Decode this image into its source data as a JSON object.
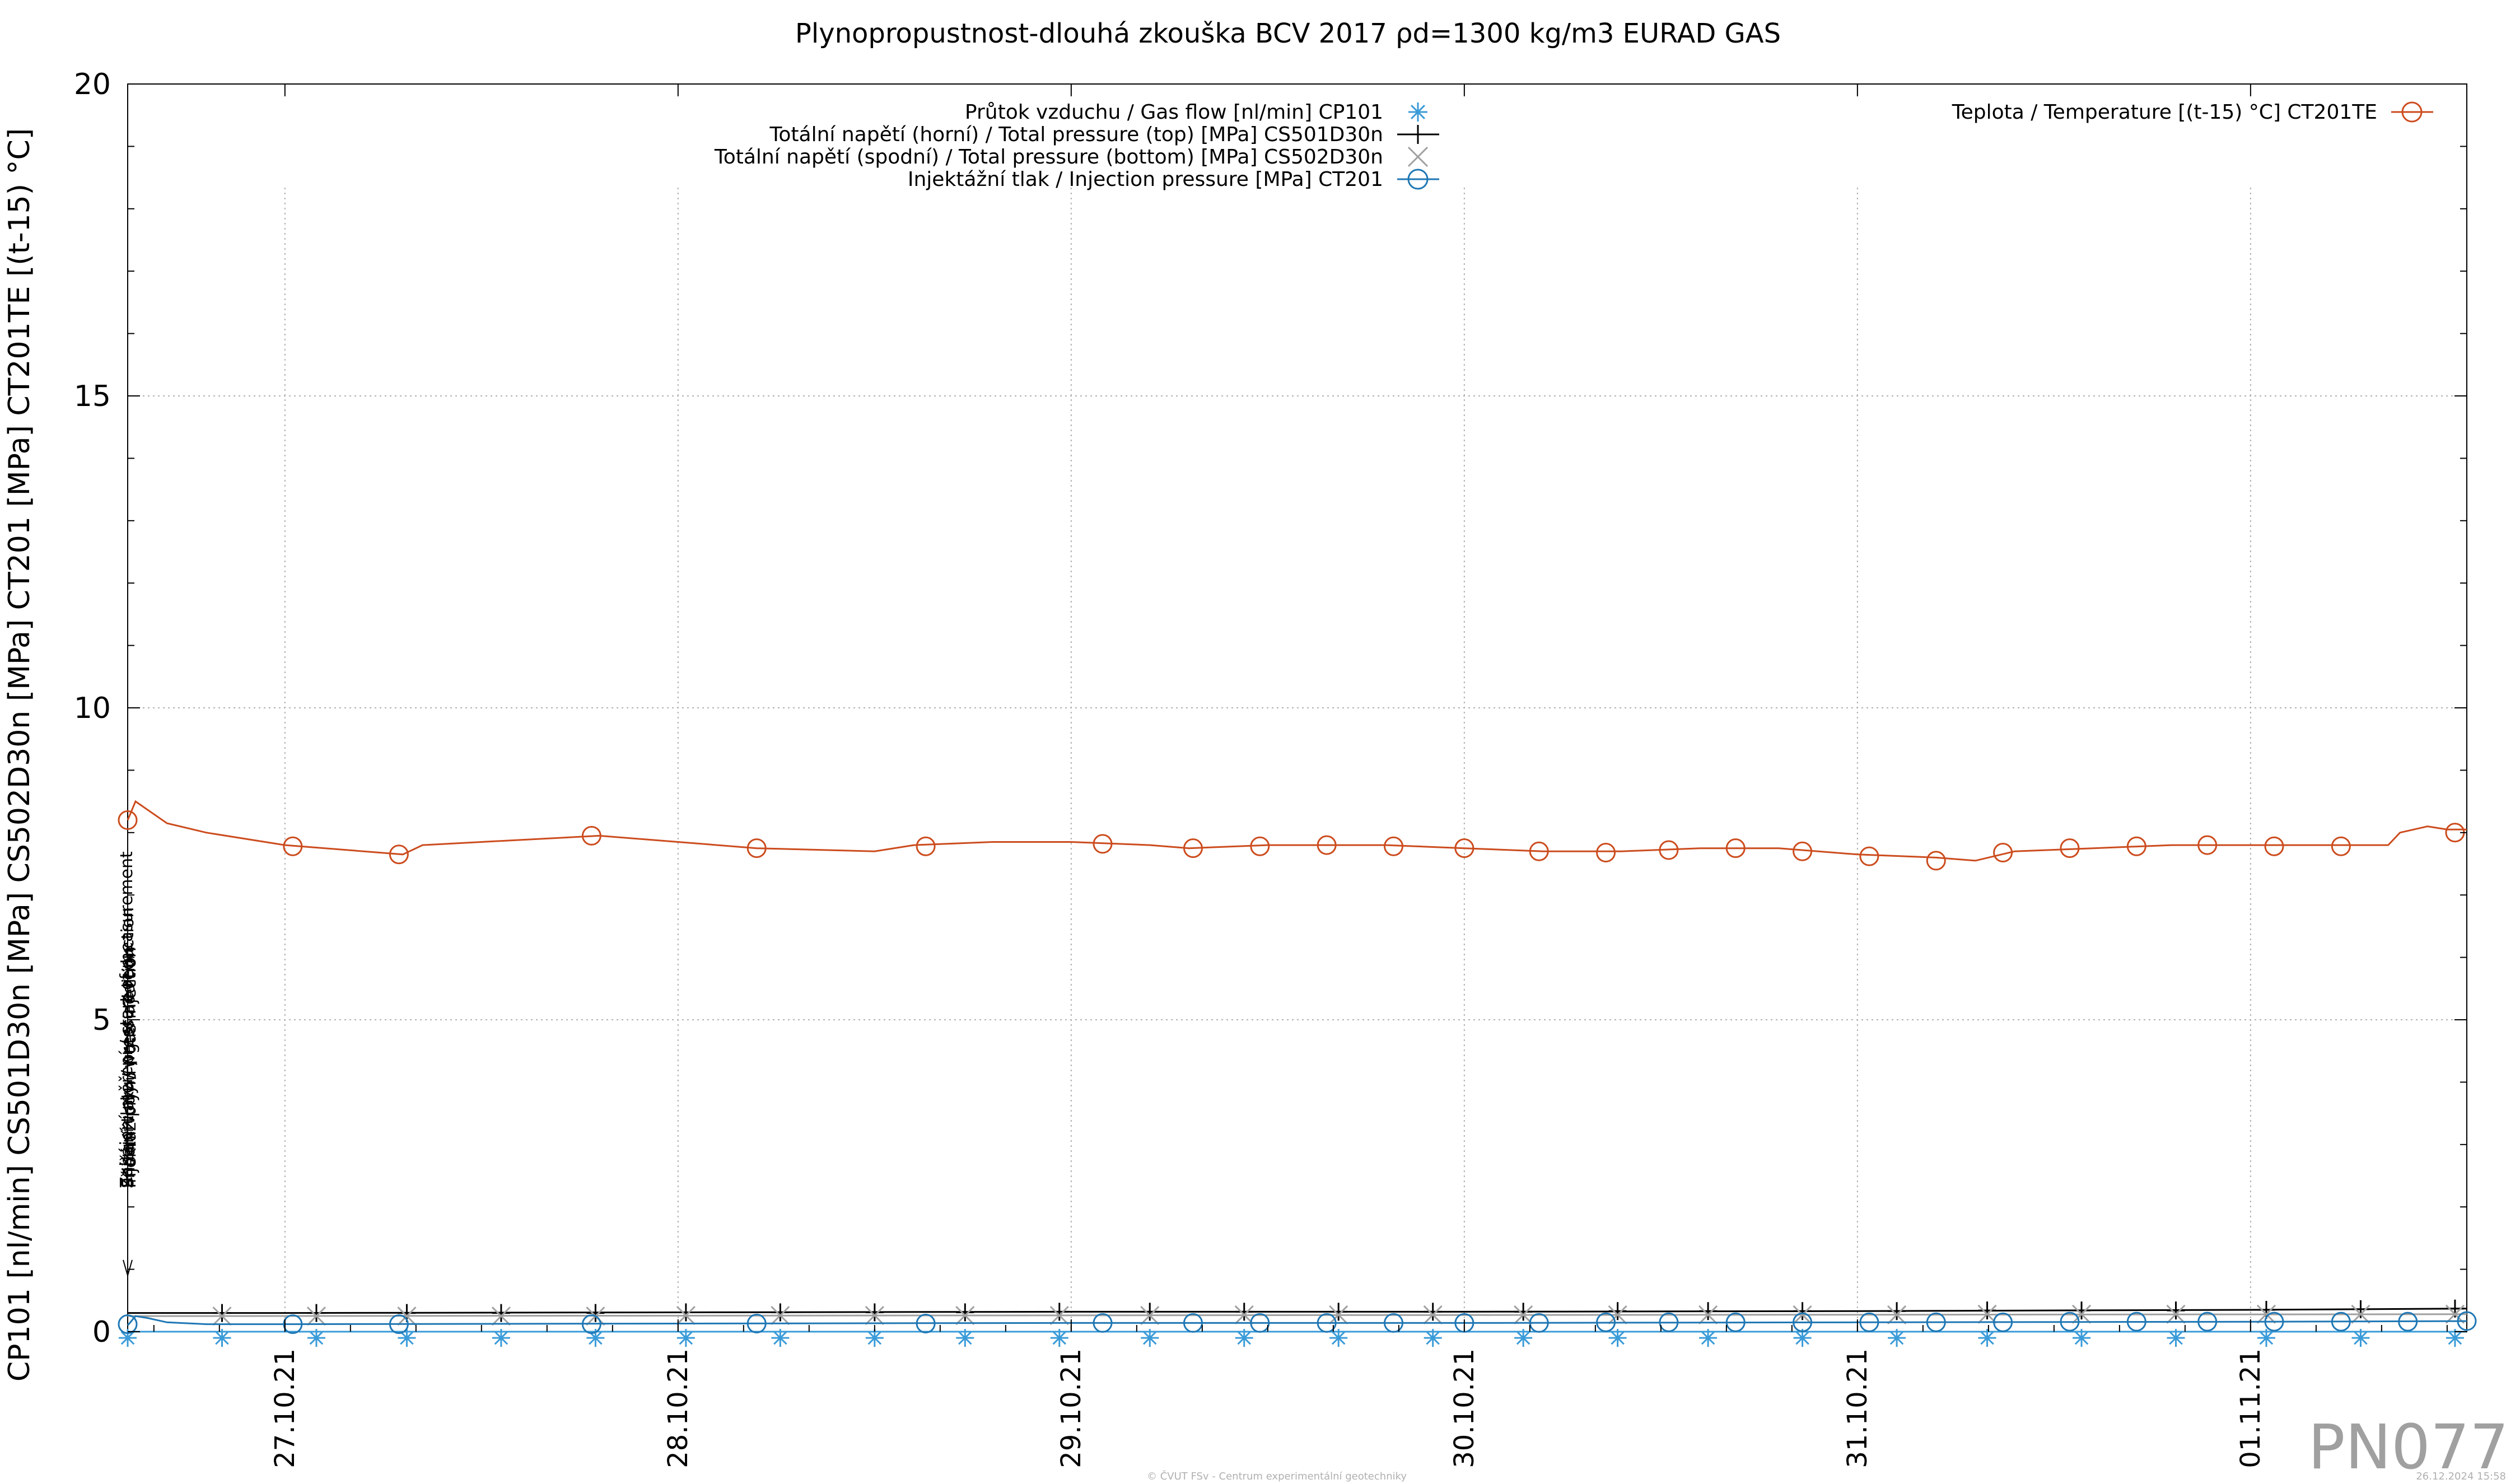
{
  "chart_data": {
    "type": "line",
    "title": "Plynopropustnost-dlouhá zkouška BCV 2017 ρd=1300 kg/m3 EURAD GAS",
    "ylabel": "CP101 [nl/min] CS501D30n [MPa] CS502D30n [MPa] CT201 [MPa] CT201TE [(t-15) °C]",
    "xlabel": "",
    "ylim": [
      0,
      20
    ],
    "yticks": [
      "0",
      "5",
      "10",
      "15",
      "20"
    ],
    "xlim": [
      26.6,
      32.55
    ],
    "x_unit": "days (27.10.21 = day 27)",
    "xticks": [
      {
        "label": "27.10.21",
        "x": 27
      },
      {
        "label": "28.10.21",
        "x": 28
      },
      {
        "label": "29.10.21",
        "x": 29
      },
      {
        "label": "30.10.21",
        "x": 30
      },
      {
        "label": "31.10.21",
        "x": 31
      },
      {
        "label": "01.11.21",
        "x": 32
      }
    ],
    "grid": true,
    "legend_left_position": "top-center",
    "legend_right_position": "top-right",
    "series": [
      {
        "name": "Průtok vzduchu / Gas flow [nl/min] CP101",
        "color": "#3a9bd8",
        "marker": "asterisk",
        "legend": "left",
        "x": [
          26.6,
          32.55
        ],
        "y": [
          0.0,
          0.0
        ],
        "marker_x": [
          26.6,
          26.84,
          27.08,
          27.31,
          27.55,
          27.79,
          28.02,
          28.26,
          28.5,
          28.73,
          28.97,
          29.2,
          29.44,
          29.68,
          29.92,
          30.15,
          30.39,
          30.62,
          30.86,
          31.1,
          31.33,
          31.57,
          31.81,
          32.04,
          32.28,
          32.52
        ],
        "marker_y": [
          -0.1,
          -0.1,
          -0.1,
          -0.1,
          -0.1,
          -0.1,
          -0.1,
          -0.1,
          -0.1,
          -0.1,
          -0.1,
          -0.1,
          -0.1,
          -0.1,
          -0.1,
          -0.1,
          -0.1,
          -0.1,
          -0.1,
          -0.1,
          -0.1,
          -0.1,
          -0.1,
          -0.1,
          -0.1,
          -0.1
        ]
      },
      {
        "name": "Totální napětí (horní) / Total pressure (top) [MPa] CS501D30n",
        "color": "#000000",
        "marker": "plus",
        "legend": "left",
        "x": [
          26.6,
          27.0,
          28.0,
          29.0,
          30.0,
          31.0,
          32.0,
          32.55
        ],
        "y": [
          0.3,
          0.3,
          0.31,
          0.32,
          0.32,
          0.33,
          0.35,
          0.37
        ],
        "marker_x": [
          26.84,
          27.08,
          27.31,
          27.55,
          27.79,
          28.02,
          28.26,
          28.5,
          28.73,
          28.97,
          29.2,
          29.44,
          29.68,
          29.92,
          30.15,
          30.39,
          30.62,
          30.86,
          31.1,
          31.33,
          31.57,
          31.81,
          32.04,
          32.28,
          32.52
        ],
        "marker_y": [
          0.3,
          0.3,
          0.3,
          0.3,
          0.3,
          0.31,
          0.31,
          0.31,
          0.31,
          0.32,
          0.32,
          0.32,
          0.32,
          0.32,
          0.32,
          0.33,
          0.33,
          0.33,
          0.33,
          0.34,
          0.34,
          0.34,
          0.35,
          0.36,
          0.37
        ]
      },
      {
        "name": "Totální napětí (spodní) / Total pressure (bottom) [MPa] CS502D30n",
        "color": "#a0a0a0",
        "marker": "cross",
        "legend": "left",
        "x": [
          26.6,
          32.55
        ],
        "y": [
          0.25,
          0.28
        ],
        "marker_x": [
          26.84,
          27.08,
          27.31,
          27.55,
          27.79,
          28.02,
          28.26,
          28.5,
          28.73,
          28.97,
          29.2,
          29.44,
          29.68,
          29.92,
          30.15,
          30.39,
          30.62,
          30.86,
          31.1,
          31.33,
          31.57,
          31.81,
          32.04,
          32.28,
          32.52
        ],
        "marker_y": [
          0.25,
          0.25,
          0.25,
          0.25,
          0.25,
          0.26,
          0.26,
          0.26,
          0.26,
          0.26,
          0.26,
          0.27,
          0.27,
          0.27,
          0.27,
          0.27,
          0.27,
          0.27,
          0.27,
          0.28,
          0.28,
          0.28,
          0.28,
          0.28,
          0.28
        ]
      },
      {
        "name": "Injektážní tlak / Injection pressure [MPa] CT201",
        "color": "#1f77b4",
        "marker": "circle",
        "legend": "left",
        "x": [
          26.6,
          26.62,
          26.65,
          26.7,
          26.8,
          27.0,
          28.0,
          29.0,
          30.0,
          31.0,
          32.0,
          32.55
        ],
        "y": [
          0.1,
          0.25,
          0.22,
          0.15,
          0.12,
          0.12,
          0.13,
          0.14,
          0.14,
          0.15,
          0.16,
          0.17
        ],
        "marker_x": [
          26.6,
          27.02,
          27.29,
          27.78,
          28.2,
          28.63,
          29.08,
          29.31,
          29.48,
          29.65,
          29.82,
          30.0,
          30.19,
          30.36,
          30.52,
          30.69,
          30.86,
          31.03,
          31.2,
          31.37,
          31.54,
          31.71,
          31.89,
          32.06,
          32.23,
          32.4,
          32.55
        ],
        "marker_y": [
          0.12,
          0.12,
          0.12,
          0.12,
          0.13,
          0.13,
          0.14,
          0.14,
          0.14,
          0.14,
          0.14,
          0.14,
          0.14,
          0.15,
          0.15,
          0.15,
          0.15,
          0.15,
          0.15,
          0.15,
          0.16,
          0.16,
          0.16,
          0.16,
          0.16,
          0.16,
          0.17
        ]
      },
      {
        "name": "Teplota / Temperature [(t-15) °C] CT201TE",
        "color": "#cc4c1e",
        "marker": "circle",
        "legend": "right",
        "x": [
          26.6,
          26.62,
          26.7,
          26.8,
          27.0,
          27.2,
          27.3,
          27.35,
          27.5,
          27.8,
          28.0,
          28.2,
          28.5,
          28.6,
          28.8,
          29.0,
          29.2,
          29.3,
          29.5,
          29.6,
          29.8,
          30.0,
          30.2,
          30.4,
          30.6,
          30.8,
          31.0,
          31.2,
          31.3,
          31.4,
          31.6,
          31.8,
          32.0,
          32.2,
          32.35,
          32.38,
          32.45,
          32.5,
          32.55
        ],
        "y": [
          8.2,
          8.5,
          8.15,
          8.0,
          7.8,
          7.7,
          7.65,
          7.8,
          7.85,
          7.95,
          7.85,
          7.75,
          7.7,
          7.8,
          7.85,
          7.85,
          7.8,
          7.75,
          7.8,
          7.8,
          7.8,
          7.75,
          7.7,
          7.7,
          7.75,
          7.75,
          7.65,
          7.6,
          7.55,
          7.7,
          7.75,
          7.8,
          7.8,
          7.8,
          7.8,
          8.0,
          8.1,
          8.05,
          8.05
        ],
        "marker_x": [
          26.6,
          27.02,
          27.29,
          27.78,
          28.2,
          28.63,
          29.08,
          29.31,
          29.48,
          29.65,
          29.82,
          30.0,
          30.19,
          30.36,
          30.52,
          30.69,
          30.86,
          31.03,
          31.2,
          31.37,
          31.54,
          31.71,
          31.89,
          32.06,
          32.23,
          32.52
        ],
        "marker_y": [
          8.2,
          7.78,
          7.65,
          7.95,
          7.75,
          7.78,
          7.82,
          7.75,
          7.78,
          7.8,
          7.78,
          7.75,
          7.7,
          7.68,
          7.72,
          7.75,
          7.7,
          7.62,
          7.55,
          7.68,
          7.75,
          7.78,
          7.8,
          7.78,
          7.78,
          8.0
        ]
      }
    ],
    "annotations": [
      {
        "text": "Zahájení měření / start of measurement",
        "x": 26.6
      },
      {
        "text": "Snížení tlaku / pressure reduction",
        "x": 26.6
      },
      {
        "text": "Přidání vody / water addition",
        "x": 26.6
      },
      {
        "text": "Injektáž plynu / gas injection",
        "x": 26.6
      }
    ]
  },
  "watermark": "PN077",
  "footer_left": "© ČVUT FSv - Centrum experimentální geotechniky",
  "footer_right": "26.12.2024 15:58"
}
